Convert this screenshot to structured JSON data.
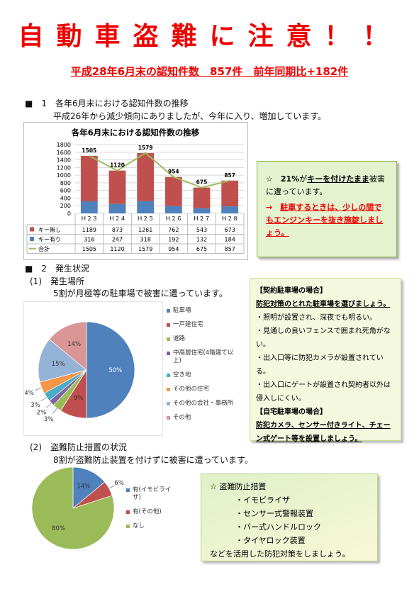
{
  "header": {
    "title": "自動車盗難に注意！！",
    "subtitle": "平成28年6月末の認知件数　857件　前年同期比+182件"
  },
  "section1": {
    "heading": "■　1　各年6月末における認知件数の推移",
    "text": "平成26年から減少傾向にありましたが、今年に入り、増加しています。"
  },
  "notice1": {
    "line1": [
      "☆　",
      "21%",
      "が",
      "キーを付けたまま",
      "被害に遭っています。"
    ],
    "arrow": "→",
    "line2": "駐車するときは、少しの間でもエンジンキーを抜き施錠しましょう。"
  },
  "section2": {
    "heading": "■　2　発生状況",
    "sub1": "(1)　発生場所",
    "text1": "5割が月極等の駐車場で被害に遭っています。",
    "sub2": "(2)　盗難防止措置の状況",
    "text2": "8割が盗難防止装置を付けずに被害に遭っています。"
  },
  "parking_box": {
    "head1": "【契約駐車場の場合】",
    "lead1": "防犯対策のとれた駐車場を選びましょう。",
    "bullets": [
      "・照明が設置され、深夜でも明るい。",
      "・見通しの良いフェンスで囲まれ死角がない。",
      "・出入口等に防犯カメラが設置されている。",
      "・出入口にゲートが設置され契約者以外は侵入しにくい。"
    ],
    "head2": "【自宅駐車場の場合】",
    "lead2": "防犯カメラ、センサー付きライト、チェーン式ゲート等を設置しましょう。"
  },
  "measures_box": {
    "title": "☆ 盗難防止措置",
    "items": [
      "・イモビライザ",
      "・センサー式警報装置",
      "・バー式ハンドルロック",
      "・タイヤロック装置"
    ],
    "footer": "などを活用した防犯対策をしましょう。"
  },
  "chart_data": [
    {
      "type": "bar",
      "stacked": true,
      "title": "各年6月末における認知件数の推移",
      "categories": [
        "Ｈ２３",
        "Ｈ２４",
        "Ｈ２５",
        "Ｈ２６",
        "Ｈ２７",
        "Ｈ２８"
      ],
      "series": [
        {
          "name": "キー無し",
          "color": "#c0504d",
          "values": [
            1189,
            873,
            1261,
            762,
            543,
            673
          ]
        },
        {
          "name": "キー有り",
          "color": "#4f81bd",
          "values": [
            316,
            247,
            318,
            192,
            132,
            184
          ]
        },
        {
          "name": "合計",
          "type": "line",
          "color": "#9bbb59",
          "values": [
            1505,
            1120,
            1579,
            954,
            675,
            857
          ]
        }
      ],
      "ylim": [
        0,
        1800
      ],
      "yticks": [
        0,
        200,
        400,
        600,
        800,
        1000,
        1200,
        1400,
        1600,
        1800
      ],
      "grid": true,
      "data_table": true
    },
    {
      "type": "pie",
      "categories": [
        "駐車場",
        "一戸建住宅",
        "道路",
        "中高層住宅(4階建て以上)",
        "空き地",
        "その他の住宅",
        "その他の会社・事務所",
        "その他"
      ],
      "values": [
        50,
        9,
        3,
        2,
        3,
        4,
        15,
        14
      ],
      "value_labels": [
        "50%",
        "9%",
        "3%",
        "2%",
        "3%",
        "4%",
        "15%",
        "14%"
      ],
      "colors": [
        "#4f81bd",
        "#c0504d",
        "#9bbb59",
        "#8064a2",
        "#4bacc6",
        "#f79646",
        "#95b3d7",
        "#d99694"
      ],
      "legend": "right"
    },
    {
      "type": "pie",
      "categories": [
        "有(イモビライザ)",
        "有(その他)",
        "なし"
      ],
      "values": [
        14,
        6,
        80
      ],
      "value_labels": [
        "14%",
        "6%",
        "80%"
      ],
      "colors": [
        "#4f81bd",
        "#c0504d",
        "#9bbb59"
      ],
      "legend": "right"
    }
  ]
}
